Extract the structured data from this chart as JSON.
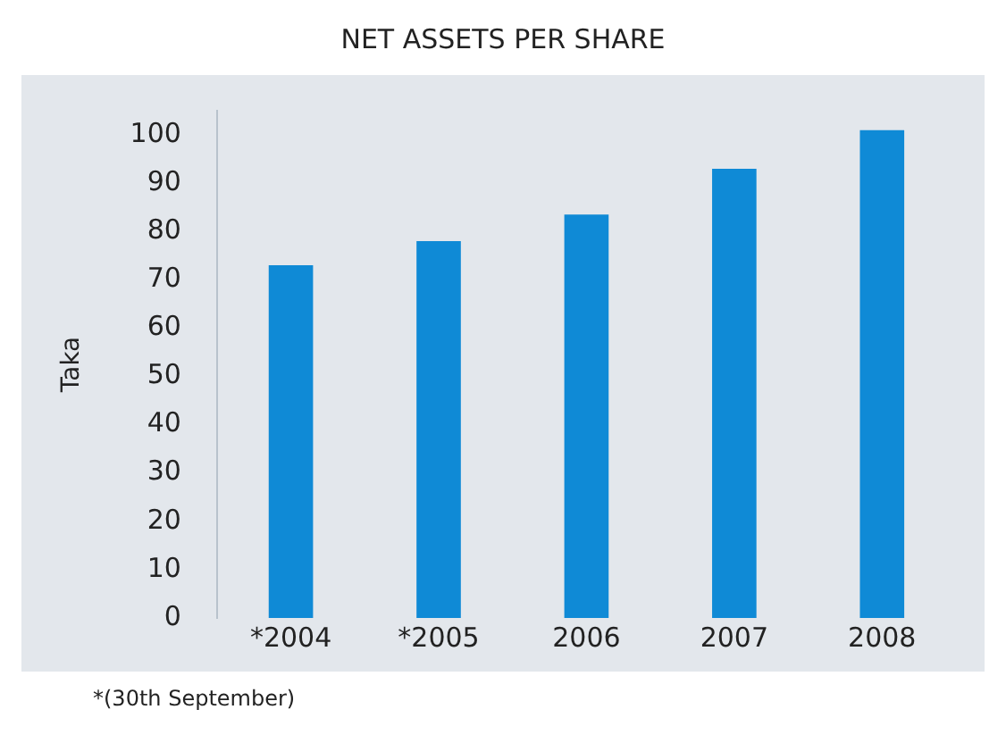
{
  "chart_data": {
    "type": "bar",
    "title": "NET ASSETS PER SHARE",
    "ylabel": "Taka",
    "categories": [
      "*2004",
      "*2005",
      "2006",
      "2007",
      "2008"
    ],
    "values": [
      73,
      78,
      83.5,
      93,
      101
    ],
    "color": "#0f8ad6",
    "ylim": [
      0,
      105
    ],
    "yticks": [
      0,
      10,
      20,
      30,
      40,
      50,
      60,
      70,
      80,
      90,
      100
    ],
    "grid": false,
    "legend": false,
    "annotations": [
      "*(30th September)"
    ]
  }
}
